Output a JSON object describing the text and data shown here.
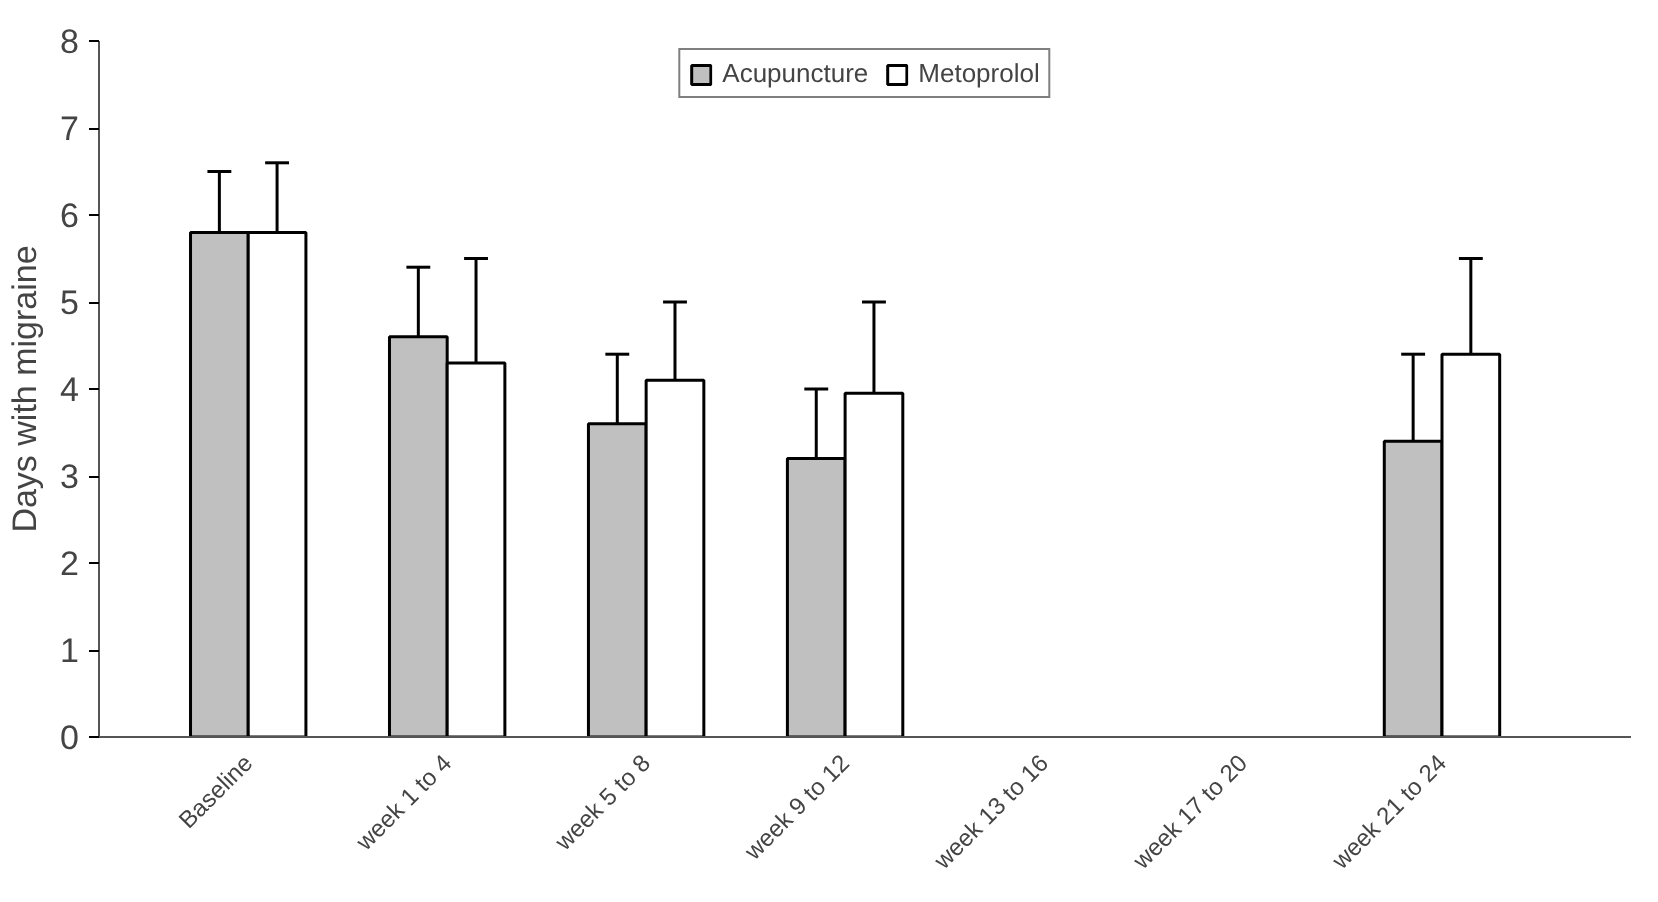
{
  "chart_data": {
    "type": "bar",
    "ylabel": "Days with migraine",
    "categories": [
      "Baseline",
      "week 1 to 4",
      "week 5 to 8",
      "week 9 to 12",
      "week 13 to 16",
      "week 17 to 20",
      "week 21 to 24"
    ],
    "series": [
      {
        "name": "Acupuncture",
        "color": "#c0c0c0",
        "values": [
          5.8,
          4.6,
          3.6,
          3.2,
          null,
          null,
          3.4
        ],
        "errors": [
          [
            5.8,
            6.5
          ],
          [
            4.6,
            5.4
          ],
          [
            3.6,
            4.4
          ],
          [
            3.2,
            4.0
          ],
          null,
          null,
          [
            3.4,
            4.4
          ]
        ]
      },
      {
        "name": "Metoprolol",
        "color": "#ffffff",
        "values": [
          5.8,
          4.3,
          4.1,
          3.95,
          null,
          null,
          4.4
        ],
        "errors": [
          [
            5.8,
            6.6
          ],
          [
            4.3,
            5.5
          ],
          [
            4.1,
            5.0
          ],
          [
            3.95,
            5.0
          ],
          null,
          null,
          [
            4.4,
            5.5
          ]
        ]
      }
    ],
    "ylim": [
      0,
      8
    ],
    "yticks": [
      0,
      1,
      2,
      3,
      4,
      5,
      6,
      7,
      8
    ],
    "grid": false,
    "legend": "top"
  }
}
